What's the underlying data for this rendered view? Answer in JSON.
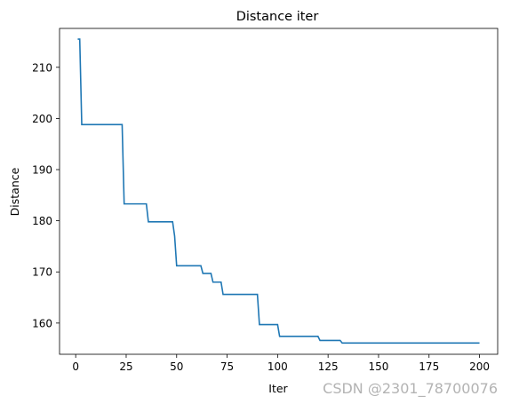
{
  "chart_data": {
    "type": "line",
    "title": "Distance iter",
    "xlabel": "Iter",
    "ylabel": "Distance",
    "xlim": [
      -8,
      209
    ],
    "ylim": [
      153.9,
      217.6
    ],
    "xticks": [
      0,
      25,
      50,
      75,
      100,
      125,
      150,
      175,
      200
    ],
    "yticks": [
      160,
      170,
      180,
      190,
      200,
      210
    ],
    "grid": false,
    "series_color": "#1f77b4",
    "x": [
      1,
      2,
      3,
      4,
      23,
      24,
      35,
      36,
      48,
      49,
      50,
      62,
      63,
      67,
      68,
      72,
      73,
      90,
      91,
      100,
      101,
      120,
      121,
      131,
      132,
      200
    ],
    "y": [
      215.5,
      215.5,
      198.8,
      198.8,
      198.8,
      183.3,
      183.3,
      179.8,
      179.8,
      177.0,
      171.2,
      171.2,
      169.7,
      169.7,
      168.0,
      168.0,
      165.6,
      165.6,
      159.7,
      159.7,
      157.4,
      157.4,
      156.6,
      156.6,
      156.1,
      156.1
    ]
  },
  "watermark": "CSDN @2301_78700076"
}
